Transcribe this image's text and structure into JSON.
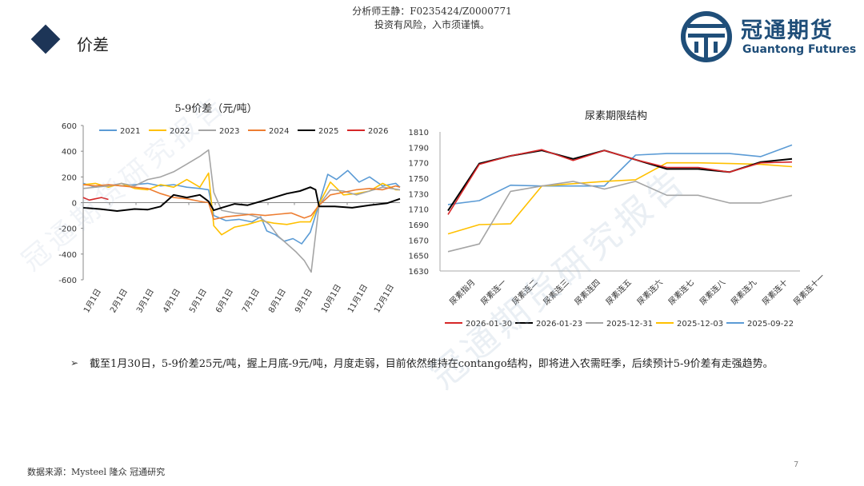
{
  "header": {
    "analyst_line": "分析师王静：F0235424/Z0000771",
    "risk_line": "投资有风险，入市须谨慎。"
  },
  "section": {
    "title": "价差",
    "icon": "diamond-icon"
  },
  "logo": {
    "name_cn": "冠通期货",
    "name_en": "Guantong Futures",
    "icon": "guantong-logo-icon"
  },
  "colors": {
    "brand": "#1f4e79",
    "accent": "#1d3557"
  },
  "watermark": "冠通期货研究报告",
  "chart_data": [
    {
      "type": "line",
      "title": "5-9价差（元/吨）",
      "x_ticks": [
        "1月1日",
        "2月1日",
        "3月1日",
        "4月1日",
        "5月1日",
        "6月1日",
        "7月1日",
        "8月1日",
        "9月1日",
        "10月1日",
        "11月1日",
        "12月1日"
      ],
      "ylim": [
        -600,
        600
      ],
      "y_ticks": [
        600,
        400,
        200,
        0,
        -200,
        -400,
        -600
      ],
      "legend_position": "top",
      "grid": false,
      "series": [
        {
          "name": "2021",
          "color": "#5b9bd5",
          "points": [
            [
              1,
              150
            ],
            [
              15,
              120
            ],
            [
              30,
              140
            ],
            [
              45,
              130
            ],
            [
              60,
              140
            ],
            [
              75,
              150
            ],
            [
              90,
              130
            ],
            [
              105,
              140
            ],
            [
              120,
              120
            ],
            [
              135,
              110
            ],
            [
              145,
              100
            ],
            [
              151,
              -100
            ],
            [
              165,
              -140
            ],
            [
              180,
              -130
            ],
            [
              195,
              -150
            ],
            [
              205,
              -110
            ],
            [
              212,
              -220
            ],
            [
              222,
              -250
            ],
            [
              232,
              -300
            ],
            [
              242,
              -280
            ],
            [
              252,
              -320
            ],
            [
              262,
              -230
            ],
            [
              272,
              -10
            ],
            [
              282,
              220
            ],
            [
              292,
              180
            ],
            [
              305,
              250
            ],
            [
              318,
              160
            ],
            [
              330,
              200
            ],
            [
              345,
              130
            ],
            [
              360,
              150
            ],
            [
              365,
              120
            ]
          ]
        },
        {
          "name": "2022",
          "color": "#ffc000",
          "points": [
            [
              1,
              140
            ],
            [
              15,
              150
            ],
            [
              30,
              120
            ],
            [
              45,
              150
            ],
            [
              60,
              110
            ],
            [
              75,
              100
            ],
            [
              90,
              140
            ],
            [
              105,
              120
            ],
            [
              120,
              180
            ],
            [
              135,
              120
            ],
            [
              145,
              230
            ],
            [
              151,
              -180
            ],
            [
              160,
              -250
            ],
            [
              175,
              -190
            ],
            [
              190,
              -170
            ],
            [
              205,
              -140
            ],
            [
              220,
              -160
            ],
            [
              235,
              -170
            ],
            [
              250,
              -150
            ],
            [
              262,
              -150
            ],
            [
              272,
              -10
            ],
            [
              285,
              160
            ],
            [
              300,
              60
            ],
            [
              315,
              70
            ],
            [
              330,
              90
            ],
            [
              345,
              150
            ],
            [
              360,
              100
            ],
            [
              365,
              100
            ]
          ]
        },
        {
          "name": "2023",
          "color": "#a5a5a5",
          "points": [
            [
              1,
              110
            ],
            [
              15,
              120
            ],
            [
              30,
              130
            ],
            [
              45,
              150
            ],
            [
              60,
              130
            ],
            [
              75,
              180
            ],
            [
              90,
              200
            ],
            [
              105,
              240
            ],
            [
              120,
              300
            ],
            [
              135,
              360
            ],
            [
              145,
              410
            ],
            [
              151,
              80
            ],
            [
              160,
              -60
            ],
            [
              175,
              -80
            ],
            [
              190,
              -90
            ],
            [
              205,
              -120
            ],
            [
              215,
              -170
            ],
            [
              225,
              -260
            ],
            [
              235,
              -320
            ],
            [
              245,
              -380
            ],
            [
              255,
              -450
            ],
            [
              263,
              -540
            ],
            [
              272,
              -20
            ],
            [
              285,
              100
            ],
            [
              300,
              90
            ],
            [
              315,
              60
            ],
            [
              330,
              90
            ],
            [
              345,
              120
            ],
            [
              365,
              100
            ]
          ]
        },
        {
          "name": "2024",
          "color": "#ed7d31",
          "points": [
            [
              1,
              140
            ],
            [
              15,
              130
            ],
            [
              30,
              140
            ],
            [
              45,
              130
            ],
            [
              60,
              120
            ],
            [
              75,
              110
            ],
            [
              90,
              70
            ],
            [
              105,
              40
            ],
            [
              120,
              30
            ],
            [
              135,
              10
            ],
            [
              145,
              0
            ],
            [
              151,
              -130
            ],
            [
              165,
              -110
            ],
            [
              180,
              -100
            ],
            [
              195,
              -90
            ],
            [
              210,
              -100
            ],
            [
              225,
              -90
            ],
            [
              240,
              -80
            ],
            [
              255,
              -120
            ],
            [
              263,
              -100
            ],
            [
              272,
              -20
            ],
            [
              285,
              60
            ],
            [
              300,
              80
            ],
            [
              315,
              100
            ],
            [
              330,
              110
            ],
            [
              345,
              100
            ],
            [
              360,
              130
            ],
            [
              365,
              120
            ]
          ]
        },
        {
          "name": "2025",
          "color": "#000000",
          "points": [
            [
              1,
              -40
            ],
            [
              20,
              -50
            ],
            [
              40,
              -65
            ],
            [
              60,
              -50
            ],
            [
              75,
              -55
            ],
            [
              90,
              -30
            ],
            [
              105,
              60
            ],
            [
              120,
              40
            ],
            [
              135,
              60
            ],
            [
              145,
              10
            ],
            [
              151,
              -60
            ],
            [
              160,
              -40
            ],
            [
              175,
              -10
            ],
            [
              190,
              -20
            ],
            [
              205,
              10
            ],
            [
              220,
              40
            ],
            [
              235,
              70
            ],
            [
              250,
              90
            ],
            [
              262,
              120
            ],
            [
              268,
              100
            ],
            [
              272,
              -30
            ],
            [
              290,
              -30
            ],
            [
              310,
              -40
            ],
            [
              330,
              -20
            ],
            [
              350,
              -5
            ],
            [
              365,
              30
            ]
          ]
        },
        {
          "name": "2026",
          "color": "#d62728",
          "points": [
            [
              1,
              40
            ],
            [
              8,
              20
            ],
            [
              15,
              30
            ],
            [
              22,
              40
            ],
            [
              30,
              25
            ]
          ]
        }
      ]
    },
    {
      "type": "line",
      "title": "尿素期限结构",
      "categories": [
        "尿素指月",
        "尿素连一",
        "尿素连二",
        "尿素连三",
        "尿素连四",
        "尿素连五",
        "尿素连六",
        "尿素连七",
        "尿素连八",
        "尿素连九",
        "尿素连十",
        "尿素连十一"
      ],
      "ylim": [
        1630,
        1810
      ],
      "y_ticks": [
        1810,
        1790,
        1770,
        1750,
        1730,
        1710,
        1690,
        1670,
        1650,
        1630
      ],
      "legend_position": "bottom",
      "grid": false,
      "series": [
        {
          "name": "2026-01-30",
          "color": "#d62728",
          "values": [
            1703,
            1768,
            1779,
            1787,
            1773,
            1786,
            1774,
            1764,
            1764,
            1758,
            1770,
            1771
          ]
        },
        {
          "name": "2026-01-23",
          "color": "#000000",
          "values": [
            1708,
            1769,
            1779,
            1786,
            1775,
            1786,
            1774,
            1762,
            1762,
            1758,
            1771,
            1775
          ]
        },
        {
          "name": "2025-12-31",
          "color": "#a5a5a5",
          "values": [
            1655,
            1665,
            1733,
            1740,
            1746,
            1736,
            1746,
            1728,
            1728,
            1718,
            1718,
            1728
          ]
        },
        {
          "name": "2025-12-03",
          "color": "#ffc000",
          "values": [
            1678,
            1690,
            1691,
            1740,
            1743,
            1746,
            1748,
            1770,
            1770,
            1769,
            1768,
            1765
          ]
        },
        {
          "name": "2025-09-22",
          "color": "#5b9bd5",
          "values": [
            1716,
            1721,
            1741,
            1740,
            1740,
            1740,
            1780,
            1782,
            1782,
            1782,
            1778,
            1793
          ]
        }
      ]
    }
  ],
  "commentary": "截至1月30日，5-9价差25元/吨，握上月底-9元/吨，月度走弱，目前依然维持在contango结构，即将进入农需旺季，后续预计5-9价差有走强趋势。",
  "bullet_symbol": "➢",
  "footer": {
    "source": "数据来源：Mysteel 隆众 冠通研究",
    "page": "7"
  }
}
